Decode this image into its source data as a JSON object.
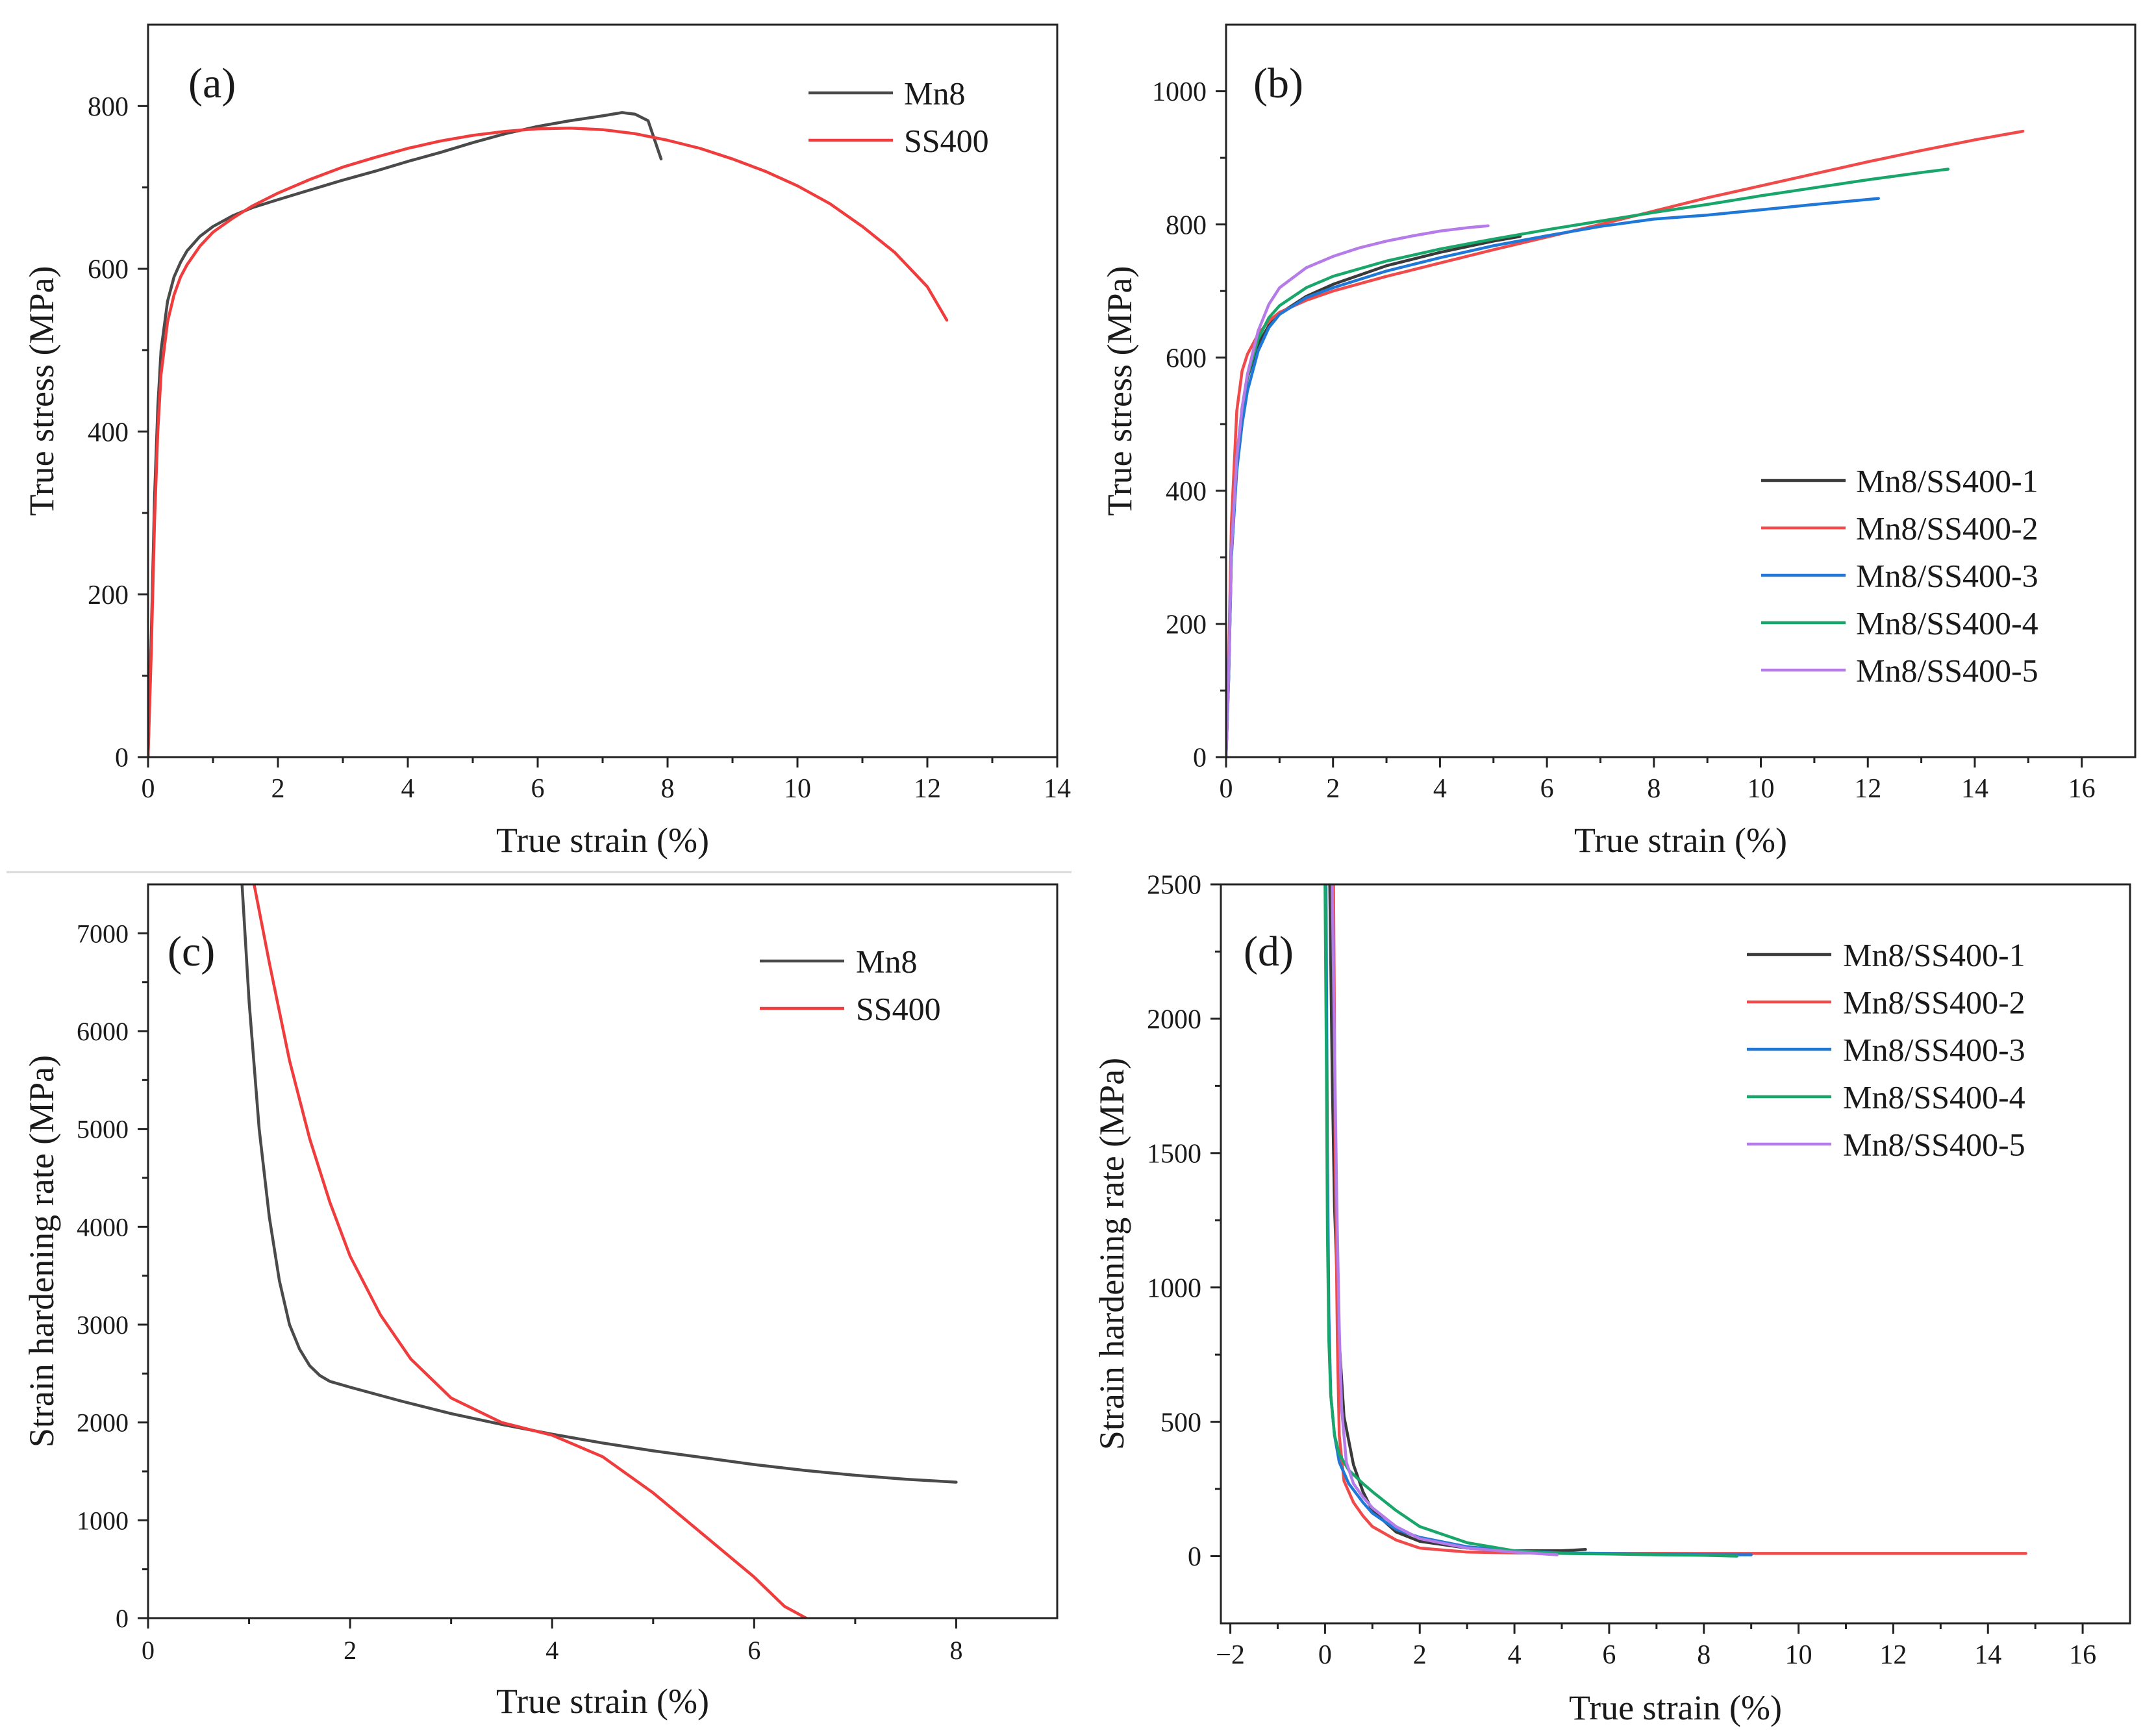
{
  "figure": {
    "colors": {
      "Mn8": "#4a4a4a",
      "SS400": "#f03c3c",
      "Mn8/SS400-1": "#3a3a3a",
      "Mn8/SS400-2": "#f04a4a",
      "Mn8/SS400-3": "#1f78d8",
      "Mn8/SS400-4": "#19a66a",
      "Mn8/SS400-5": "#b57be8"
    }
  },
  "chart_data": [
    {
      "panel": "(a)",
      "type": "line",
      "xlabel": "True strain (%)",
      "ylabel": "True stress (MPa)",
      "xlim": [
        0,
        14
      ],
      "ylim": [
        0,
        900
      ],
      "xticks": [
        0,
        2,
        4,
        6,
        8,
        10,
        12,
        14
      ],
      "yticks": [
        0,
        200,
        400,
        600,
        800
      ],
      "legend_position": "top-right",
      "series": [
        {
          "name": "Mn8",
          "x": [
            0,
            0.05,
            0.1,
            0.15,
            0.2,
            0.3,
            0.4,
            0.5,
            0.6,
            0.8,
            1.0,
            1.3,
            1.6,
            2.0,
            2.5,
            3.0,
            3.5,
            4.0,
            4.5,
            5.0,
            5.5,
            6.0,
            6.5,
            7.0,
            7.3,
            7.5,
            7.7,
            7.9
          ],
          "y": [
            0,
            150,
            320,
            430,
            500,
            560,
            590,
            608,
            622,
            640,
            652,
            665,
            675,
            685,
            697,
            709,
            720,
            732,
            743,
            755,
            766,
            775,
            782,
            788,
            792,
            790,
            782,
            735
          ]
        },
        {
          "name": "SS400",
          "x": [
            0,
            0.05,
            0.1,
            0.15,
            0.2,
            0.3,
            0.4,
            0.5,
            0.6,
            0.8,
            1.0,
            1.3,
            1.6,
            2.0,
            2.5,
            3.0,
            3.5,
            4.0,
            4.5,
            5.0,
            5.5,
            6.0,
            6.5,
            7.0,
            7.5,
            8.0,
            8.5,
            9.0,
            9.5,
            10.0,
            10.5,
            11.0,
            11.5,
            12.0,
            12.3
          ],
          "y": [
            0,
            130,
            290,
            400,
            470,
            535,
            568,
            590,
            605,
            628,
            645,
            662,
            677,
            693,
            710,
            725,
            737,
            748,
            757,
            764,
            769,
            772,
            773,
            771,
            766,
            758,
            748,
            735,
            720,
            702,
            680,
            652,
            620,
            578,
            537
          ]
        }
      ]
    },
    {
      "panel": "(b)",
      "type": "line",
      "xlabel": "True strain (%)",
      "ylabel": "True stress (MPa)",
      "xlim": [
        0,
        17
      ],
      "ylim": [
        0,
        1100
      ],
      "xticks": [
        0,
        2,
        4,
        6,
        8,
        10,
        12,
        14,
        16
      ],
      "yticks": [
        0,
        200,
        400,
        600,
        800,
        1000
      ],
      "legend_position": "bottom-right",
      "series": [
        {
          "name": "Mn8/SS400-1",
          "x": [
            0,
            0.05,
            0.1,
            0.2,
            0.3,
            0.4,
            0.6,
            0.8,
            1.0,
            1.5,
            2.0,
            3.0,
            4.0,
            5.0,
            5.5
          ],
          "y": [
            0,
            120,
            300,
            440,
            520,
            570,
            620,
            648,
            666,
            692,
            710,
            738,
            758,
            775,
            782
          ]
        },
        {
          "name": "Mn8/SS400-2",
          "x": [
            0,
            0.05,
            0.1,
            0.2,
            0.3,
            0.4,
            0.6,
            0.8,
            1.0,
            1.5,
            2.0,
            3.0,
            4.0,
            5.0,
            6.0,
            7.0,
            8.0,
            9.0,
            10.0,
            11.0,
            12.0,
            13.0,
            14.0,
            14.9
          ],
          "y": [
            0,
            150,
            350,
            520,
            580,
            605,
            635,
            655,
            668,
            686,
            700,
            722,
            742,
            762,
            781,
            800,
            820,
            840,
            858,
            876,
            894,
            911,
            927,
            940
          ]
        },
        {
          "name": "Mn8/SS400-3",
          "x": [
            0,
            0.05,
            0.1,
            0.2,
            0.3,
            0.4,
            0.6,
            0.8,
            1.0,
            1.5,
            2.0,
            3.0,
            4.0,
            5.0,
            6.0,
            7.0,
            8.0,
            9.0,
            10.0,
            11.0,
            12.2
          ],
          "y": [
            0,
            120,
            300,
            430,
            500,
            550,
            610,
            645,
            665,
            690,
            705,
            730,
            750,
            768,
            783,
            797,
            808,
            814,
            822,
            830,
            839
          ]
        },
        {
          "name": "Mn8/SS400-4",
          "x": [
            0,
            0.05,
            0.1,
            0.2,
            0.3,
            0.4,
            0.6,
            0.8,
            1.0,
            1.5,
            2.0,
            3.0,
            4.0,
            5.0,
            6.0,
            7.0,
            8.0,
            9.0,
            10.0,
            11.0,
            12.0,
            13.0,
            13.5
          ],
          "y": [
            0,
            130,
            310,
            450,
            525,
            572,
            628,
            660,
            678,
            705,
            722,
            745,
            763,
            778,
            792,
            805,
            818,
            830,
            843,
            855,
            867,
            878,
            883
          ]
        },
        {
          "name": "Mn8/SS400-5",
          "x": [
            0,
            0.05,
            0.1,
            0.2,
            0.3,
            0.4,
            0.6,
            0.8,
            1.0,
            1.5,
            2.0,
            2.5,
            3.0,
            3.5,
            4.0,
            4.5,
            4.9
          ],
          "y": [
            0,
            130,
            310,
            450,
            525,
            575,
            640,
            680,
            705,
            735,
            752,
            765,
            775,
            783,
            790,
            795,
            798
          ]
        }
      ]
    },
    {
      "panel": "(c)",
      "type": "line",
      "xlabel": "True strain (%)",
      "ylabel": "Strain hardening rate (MPa)",
      "xlim": [
        0,
        9
      ],
      "ylim": [
        0,
        7500
      ],
      "xticks": [
        0,
        2,
        4,
        6,
        8
      ],
      "yticks": [
        0,
        1000,
        2000,
        3000,
        4000,
        5000,
        6000,
        7000
      ],
      "legend_position": "top-right",
      "series": [
        {
          "name": "Mn8",
          "x": [
            0.93,
            1.0,
            1.1,
            1.2,
            1.3,
            1.4,
            1.5,
            1.6,
            1.7,
            1.8,
            2.0,
            2.5,
            3.0,
            3.5,
            4.0,
            4.5,
            5.0,
            5.5,
            6.0,
            6.5,
            7.0,
            7.5,
            8.0
          ],
          "y": [
            7500,
            6300,
            5000,
            4100,
            3450,
            3000,
            2750,
            2580,
            2480,
            2420,
            2360,
            2220,
            2090,
            1980,
            1880,
            1790,
            1710,
            1640,
            1570,
            1510,
            1460,
            1420,
            1390
          ]
        },
        {
          "name": "SS400",
          "x": [
            1.05,
            1.2,
            1.4,
            1.6,
            1.8,
            2.0,
            2.3,
            2.6,
            3.0,
            3.5,
            4.0,
            4.5,
            5.0,
            5.5,
            6.0,
            6.3,
            6.55
          ],
          "y": [
            7500,
            6700,
            5700,
            4900,
            4250,
            3700,
            3100,
            2650,
            2250,
            2000,
            1870,
            1650,
            1280,
            850,
            420,
            120,
            -20
          ]
        }
      ]
    },
    {
      "panel": "(d)",
      "type": "line",
      "xlabel": "True strain (%)",
      "ylabel": "Strain hardening rate (MPa)",
      "xlim": [
        -2.2,
        17
      ],
      "ylim": [
        -250,
        2500
      ],
      "xticks": [
        -2,
        0,
        2,
        4,
        6,
        8,
        10,
        12,
        14,
        16
      ],
      "yticks": [
        0,
        500,
        1000,
        1500,
        2000,
        2500
      ],
      "legend_position": "top-right",
      "series": [
        {
          "name": "Mn8/SS400-1",
          "x": [
            0.1,
            0.15,
            0.2,
            0.3,
            0.4,
            0.6,
            0.8,
            1.0,
            1.5,
            2.0,
            3.0,
            4.0,
            5.0,
            5.5
          ],
          "y": [
            2500,
            1800,
            1300,
            800,
            520,
            340,
            240,
            170,
            90,
            55,
            30,
            20,
            20,
            25
          ]
        },
        {
          "name": "Mn8/SS400-2",
          "x": [
            0.18,
            0.22,
            0.26,
            0.3,
            0.4,
            0.6,
            0.8,
            1.0,
            1.5,
            2.0,
            3.0,
            4.0,
            6.0,
            8.0,
            10.0,
            12.0,
            14.0,
            14.8
          ],
          "y": [
            2500,
            1400,
            800,
            450,
            280,
            200,
            150,
            110,
            60,
            30,
            15,
            12,
            10,
            10,
            10,
            10,
            10,
            10
          ]
        },
        {
          "name": "Mn8/SS400-3",
          "x": [
            0.02,
            0.05,
            0.08,
            0.12,
            0.2,
            0.3,
            0.5,
            0.8,
            1.0,
            1.5,
            2.0,
            3.0,
            4.0,
            5.0,
            6.0,
            7.0,
            8.0,
            9.0
          ],
          "y": [
            2500,
            1500,
            900,
            600,
            450,
            350,
            270,
            200,
            160,
            100,
            70,
            35,
            20,
            12,
            10,
            8,
            5,
            5
          ]
        },
        {
          "name": "Mn8/SS400-4",
          "x": [
            0.0,
            0.03,
            0.05,
            0.08,
            0.12,
            0.2,
            0.3,
            0.5,
            0.8,
            1.0,
            1.5,
            2.0,
            3.0,
            4.0,
            5.0,
            6.0,
            7.0,
            8.0,
            8.7
          ],
          "y": [
            2500,
            1800,
            1200,
            800,
            600,
            450,
            380,
            320,
            270,
            240,
            170,
            110,
            50,
            20,
            10,
            8,
            5,
            3,
            0
          ]
        },
        {
          "name": "Mn8/SS400-5",
          "x": [
            0.15,
            0.2,
            0.25,
            0.3,
            0.35,
            0.45,
            0.6,
            0.8,
            1.0,
            1.5,
            2.0,
            3.0,
            4.0,
            4.9
          ],
          "y": [
            2500,
            1900,
            1300,
            850,
            550,
            350,
            270,
            220,
            180,
            110,
            65,
            30,
            15,
            5
          ]
        }
      ]
    }
  ]
}
